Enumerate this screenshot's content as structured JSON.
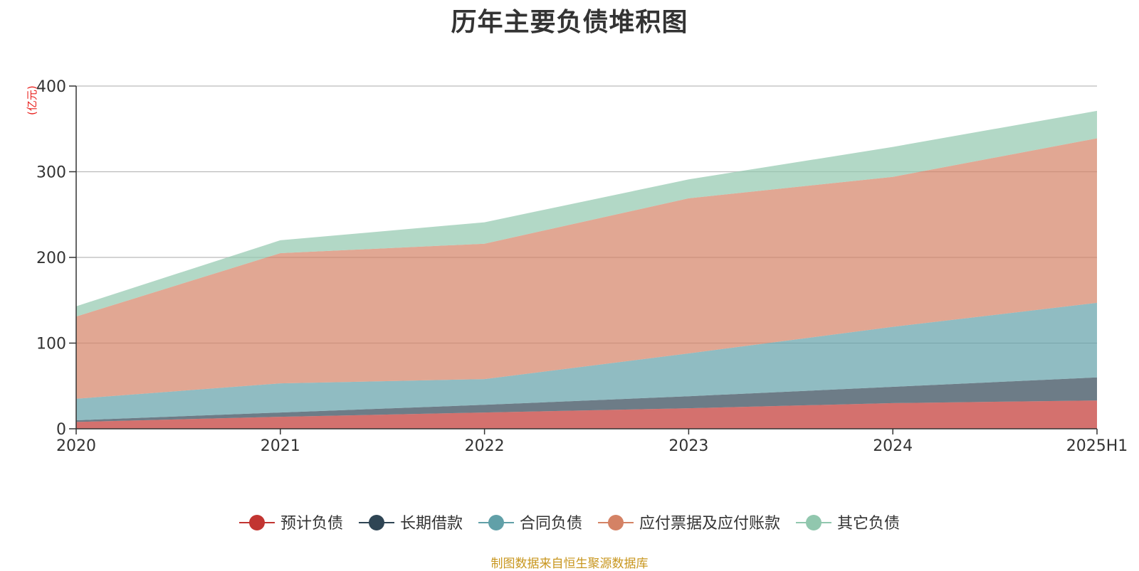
{
  "chart_data": {
    "type": "area",
    "stacked": true,
    "title": "历年主要负债堆积图",
    "unit": "(亿元)",
    "x": [
      "2020",
      "2021",
      "2022",
      "2023",
      "2024",
      "2025H1"
    ],
    "ylim": [
      0,
      400
    ],
    "yticks": [
      0,
      100,
      200,
      300,
      400
    ],
    "grid": true,
    "legend_position": "bottom",
    "series": [
      {
        "name": "预计负债",
        "color": "#c23531",
        "values": [
          8,
          14,
          19,
          24,
          30,
          33
        ]
      },
      {
        "name": "长期借款",
        "color": "#2f4554",
        "values": [
          2,
          5,
          9,
          14,
          19,
          27
        ]
      },
      {
        "name": "合同负债",
        "color": "#61a0a8",
        "values": [
          25,
          34,
          30,
          50,
          70,
          87
        ]
      },
      {
        "name": "应付票据及应付账款",
        "color": "#d48265",
        "values": [
          96,
          152,
          158,
          181,
          175,
          192
        ]
      },
      {
        "name": "其它负债",
        "color": "#91c7ae",
        "values": [
          12,
          15,
          25,
          22,
          35,
          32
        ]
      }
    ]
  },
  "source": "制图数据来自恒生聚源数据库"
}
